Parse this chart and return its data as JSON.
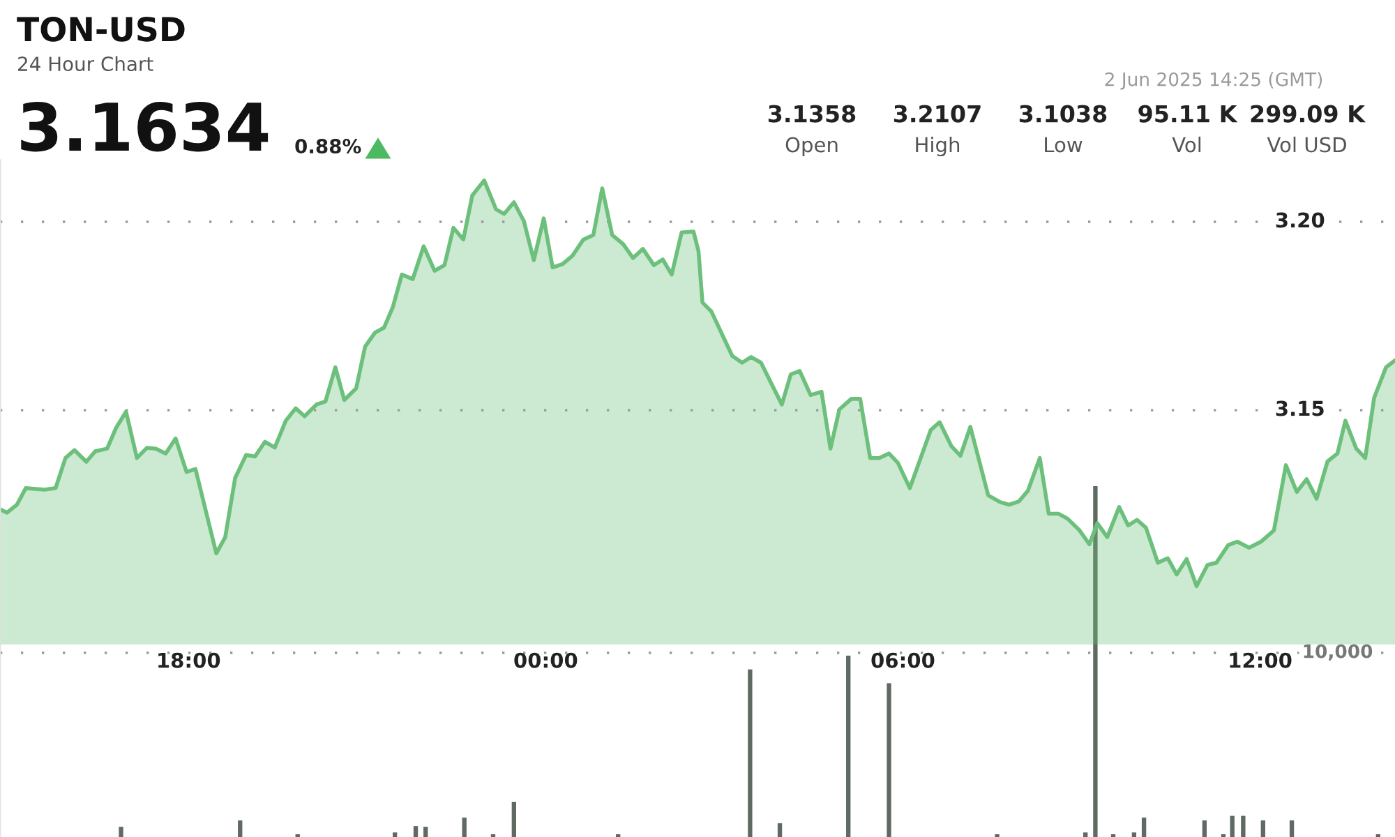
{
  "chart_data": [
    {
      "type": "area",
      "title": "TON-USD",
      "subtitle": "24 Hour Chart",
      "annotations": [
        "3.1634",
        "0.88%",
        "2 Jun 2025 14:25 (GMT)",
        "3.1358",
        "Open",
        "3.2107",
        "High",
        "3.1038",
        "Low",
        "95.11 K",
        "Vol",
        "299.09 K",
        "Vol USD"
      ],
      "x": [
        "2025-06-01T14:50",
        "2025-06-01T14:57",
        "2025-06-01T15:07",
        "2025-06-01T15:16",
        "2025-06-01T15:35",
        "2025-06-01T15:46",
        "2025-06-01T15:56",
        "2025-06-01T16:05",
        "2025-06-01T16:17",
        "2025-06-01T16:26",
        "2025-06-01T16:38",
        "2025-06-01T16:47",
        "2025-06-01T16:57",
        "2025-06-01T17:08",
        "2025-06-01T17:18",
        "2025-06-01T17:27",
        "2025-06-01T17:37",
        "2025-06-01T17:47",
        "2025-06-01T17:58",
        "2025-06-01T18:07",
        "2025-06-01T18:28",
        "2025-06-01T18:37",
        "2025-06-01T18:47",
        "2025-06-01T18:58",
        "2025-06-01T19:07",
        "2025-06-01T19:17",
        "2025-06-01T19:27",
        "2025-06-01T19:38",
        "2025-06-01T19:48",
        "2025-06-01T19:57",
        "2025-06-01T20:09",
        "2025-06-01T20:18",
        "2025-06-01T20:28",
        "2025-06-01T20:37",
        "2025-06-01T20:49",
        "2025-06-01T20:58",
        "2025-06-01T21:08",
        "2025-06-01T21:17",
        "2025-06-01T21:26",
        "2025-06-01T21:35",
        "2025-06-01T21:46",
        "2025-06-01T21:57",
        "2025-06-01T22:08",
        "2025-06-01T22:18",
        "2025-06-01T22:27",
        "2025-06-01T22:37",
        "2025-06-01T22:46",
        "2025-06-01T22:58",
        "2025-06-01T23:10",
        "2025-06-01T23:18",
        "2025-06-01T23:28",
        "2025-06-01T23:38",
        "2025-06-01T23:48",
        "2025-06-01T23:58",
        "2025-06-02T00:07",
        "2025-06-02T00:17",
        "2025-06-02T00:27",
        "2025-06-02T00:38",
        "2025-06-02T00:48",
        "2025-06-02T00:57",
        "2025-06-02T01:07",
        "2025-06-02T01:18",
        "2025-06-02T01:28",
        "2025-06-02T01:38",
        "2025-06-02T01:49",
        "2025-06-02T01:58",
        "2025-06-02T02:07",
        "2025-06-02T02:17",
        "2025-06-02T02:29",
        "2025-06-02T02:34",
        "2025-06-02T02:38",
        "2025-06-02T02:47",
        "2025-06-02T03:08",
        "2025-06-02T03:18",
        "2025-06-02T03:27",
        "2025-06-02T03:37",
        "2025-06-02T03:58",
        "2025-06-02T04:07",
        "2025-06-02T04:16",
        "2025-06-02T04:27",
        "2025-06-02T04:38",
        "2025-06-02T04:47",
        "2025-06-02T04:56",
        "2025-06-02T05:08",
        "2025-06-02T05:17",
        "2025-06-02T05:27",
        "2025-06-02T05:36",
        "2025-06-02T05:46",
        "2025-06-02T05:55",
        "2025-06-02T06:07",
        "2025-06-02T06:28",
        "2025-06-02T06:37",
        "2025-06-02T06:49",
        "2025-06-02T06:58",
        "2025-06-02T07:08",
        "2025-06-02T07:26",
        "2025-06-02T07:38",
        "2025-06-02T07:47",
        "2025-06-02T07:57",
        "2025-06-02T08:06",
        "2025-06-02T08:18",
        "2025-06-02T08:27",
        "2025-06-02T08:37",
        "2025-06-02T08:46",
        "2025-06-02T08:58",
        "2025-06-02T09:08",
        "2025-06-02T09:16",
        "2025-06-02T09:26",
        "2025-06-02T09:38",
        "2025-06-02T09:47",
        "2025-06-02T09:56",
        "2025-06-02T10:05",
        "2025-06-02T10:17",
        "2025-06-02T10:27",
        "2025-06-02T10:36",
        "2025-06-02T10:46",
        "2025-06-02T10:56",
        "2025-06-02T11:07",
        "2025-06-02T11:16",
        "2025-06-02T11:28",
        "2025-06-02T11:37",
        "2025-06-02T11:49",
        "2025-06-02T12:01",
        "2025-06-02T12:14",
        "2025-06-02T12:26",
        "2025-06-02T12:37",
        "2025-06-02T12:47",
        "2025-06-02T12:57",
        "2025-06-02T13:08",
        "2025-06-02T13:18",
        "2025-06-02T13:26",
        "2025-06-02T13:37",
        "2025-06-02T13:46",
        "2025-06-02T13:55",
        "2025-06-02T14:07",
        "2025-06-02T14:16"
      ],
      "series": [
        {
          "color": "#6cc07c",
          "values": [
            3.1237,
            3.1228,
            3.1249,
            3.1293,
            3.1289,
            3.1293,
            3.1373,
            3.1394,
            3.1363,
            3.1391,
            3.1398,
            3.1453,
            3.1496,
            3.1373,
            3.14,
            3.1398,
            3.1385,
            3.1425,
            3.1336,
            3.1344,
            3.112,
            3.1163,
            3.132,
            3.1381,
            3.1377,
            3.1416,
            3.1401,
            3.1472,
            3.1505,
            3.1484,
            3.1515,
            3.1523,
            3.1614,
            3.1527,
            3.1558,
            3.1669,
            3.1706,
            3.1719,
            3.1774,
            3.186,
            3.1848,
            3.1935,
            3.187,
            3.1885,
            3.1984,
            3.1953,
            3.207,
            3.211,
            3.2033,
            3.2021,
            3.2052,
            3.2002,
            3.1898,
            3.2009,
            3.1879,
            3.1888,
            3.191,
            3.1953,
            3.1965,
            3.2089,
            3.1965,
            3.1941,
            3.1904,
            3.1928,
            3.1885,
            3.19,
            3.186,
            3.1972,
            3.1974,
            3.1922,
            3.1786,
            3.1762,
            3.1644,
            3.1626,
            3.1641,
            3.1626,
            3.1515,
            3.1595,
            3.1604,
            3.154,
            3.1549,
            3.1398,
            3.1502,
            3.153,
            3.153,
            3.1373,
            3.1373,
            3.1385,
            3.136,
            3.1293,
            3.1447,
            3.1468,
            3.1404,
            3.1379,
            3.1456,
            3.1274,
            3.1256,
            3.1249,
            3.1258,
            3.1286,
            3.1373,
            3.1225,
            3.1225,
            3.1212,
            3.1181,
            3.1144,
            3.12,
            3.1163,
            3.1243,
            3.1194,
            3.1209,
            3.1188,
            3.1095,
            3.1107,
            3.1064,
            3.1105,
            3.1033,
            3.1089,
            3.1095,
            3.1142,
            3.1151,
            3.1135,
            3.1151,
            3.1181,
            3.1354,
            3.1283,
            3.1317,
            3.1265,
            3.1364,
            3.1385,
            3.1472,
            3.1398,
            3.1373,
            3.1533,
            3.1614,
            3.1632
          ]
        }
      ],
      "xlim": [
        "2025-06-01T14:50",
        "2025-06-02T14:16"
      ],
      "xticks": [
        {
          "value": "2025-06-01T18:00",
          "label": "18:00"
        },
        {
          "value": "2025-06-02T00:00",
          "label": "00:00"
        },
        {
          "value": "2025-06-02T06:00",
          "label": "06:00"
        },
        {
          "value": "2025-06-02T12:00",
          "label": "12:00"
        }
      ],
      "ylim": [
        3.0878,
        3.2163
      ],
      "yticks": [
        {
          "value": 3.15,
          "label": "3.15"
        },
        {
          "value": 3.2,
          "label": "3.20"
        }
      ],
      "grid": "y"
    },
    {
      "type": "bar",
      "tick_labels": "y",
      "x": [
        "2025-06-01T16:52",
        "2025-06-01T18:52",
        "2025-06-01T19:50",
        "2025-06-01T21:28",
        "2025-06-01T21:49",
        "2025-06-01T21:59",
        "2025-06-01T22:38",
        "2025-06-01T23:07",
        "2025-06-01T23:28",
        "2025-06-02T01:13",
        "2025-06-02T03:26",
        "2025-06-02T03:56",
        "2025-06-02T05:05",
        "2025-06-02T05:46",
        "2025-06-02T07:35",
        "2025-06-02T09:04",
        "2025-06-02T09:14",
        "2025-06-02T09:32",
        "2025-06-02T09:53",
        "2025-06-02T10:03",
        "2025-06-02T11:04",
        "2025-06-02T11:23",
        "2025-06-02T11:32",
        "2025-06-02T11:43",
        "2025-06-02T12:03",
        "2025-06-02T12:32",
        "2025-06-02T13:59"
      ],
      "series": [
        {
          "color": "#5f6b62",
          "values": [
            550,
            900,
            150,
            250,
            600,
            550,
            1050,
            150,
            1900,
            150,
            9100,
            750,
            9850,
            8350,
            150,
            250,
            19050,
            150,
            250,
            1050,
            900,
            150,
            1150,
            1150,
            900,
            900,
            150
          ]
        }
      ],
      "xlim": [
        "2025-06-01T14:50",
        "2025-06-02T14:16"
      ],
      "ylim": [
        0,
        36740
      ],
      "yticks": [
        {
          "value": 10000,
          "label": "10,000"
        }
      ],
      "grid": "y"
    }
  ]
}
